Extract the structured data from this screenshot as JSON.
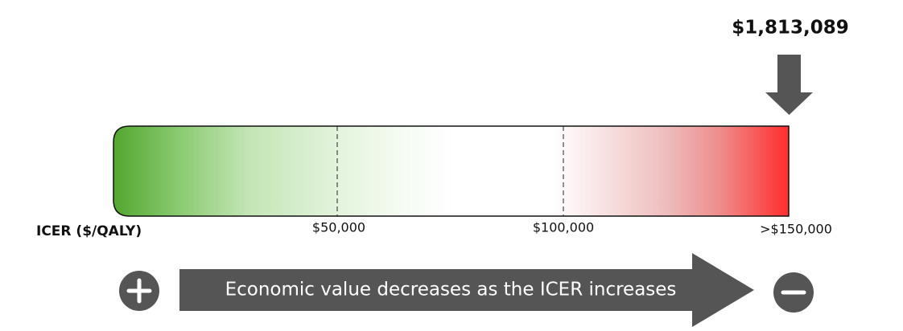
{
  "marker": {
    "label": "$1,813,089"
  },
  "scale": {
    "axis_label": "ICER ($/QALY)",
    "ticks": [
      "$50,000",
      "$100,000",
      ">$150,000"
    ]
  },
  "direction": {
    "text": "Economic value decreases as the ICER increases"
  }
}
